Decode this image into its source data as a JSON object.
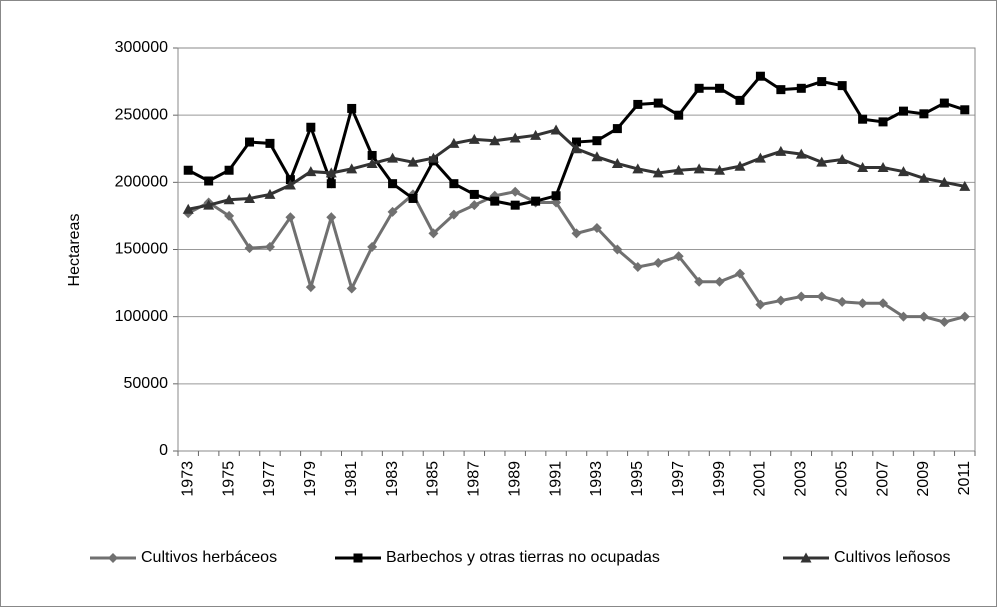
{
  "chart_data": {
    "type": "line",
    "y_label": "Hectareas",
    "categories": [
      "1973",
      null,
      "1975",
      null,
      "1977",
      null,
      "1979",
      null,
      "1981",
      null,
      "1983",
      null,
      "1985",
      null,
      "1987",
      null,
      "1989",
      null,
      "1991",
      null,
      "1993",
      null,
      "1995",
      null,
      "1997",
      null,
      "1999",
      null,
      "2001",
      null,
      "2003",
      null,
      "2005",
      null,
      "2007",
      null,
      "2009",
      null,
      "2011"
    ],
    "series": [
      {
        "name": "Cultivos herbáceos",
        "color": "#707070",
        "marker": "diamond",
        "values": [
          177000,
          185000,
          175000,
          151000,
          152000,
          174000,
          122000,
          174000,
          121000,
          152000,
          178000,
          191000,
          162000,
          176000,
          183000,
          190000,
          193000,
          185000,
          185000,
          162000,
          166000,
          150000,
          137000,
          140000,
          145000,
          126000,
          126000,
          132000,
          109000,
          112000,
          115000,
          115000,
          111000,
          110000,
          110000,
          100000,
          100000,
          96000,
          100000
        ]
      },
      {
        "name": "Barbechos y otras tierras no ocupadas",
        "color": "#000000",
        "marker": "square",
        "values": [
          209000,
          201000,
          209000,
          230000,
          229000,
          202000,
          241000,
          199000,
          255000,
          220000,
          199000,
          188000,
          216000,
          199000,
          191000,
          186000,
          183000,
          186000,
          190000,
          230000,
          231000,
          240000,
          258000,
          259000,
          250000,
          270000,
          270000,
          261000,
          279000,
          269000,
          270000,
          275000,
          272000,
          247000,
          245000,
          253000,
          251000,
          259000,
          254000
        ]
      },
      {
        "name": "Cultivos leñosos",
        "color": "#333333",
        "marker": "triangle",
        "values": [
          180000,
          183000,
          187000,
          188000,
          191000,
          198000,
          208000,
          207000,
          210000,
          214000,
          218000,
          215000,
          218000,
          229000,
          232000,
          231000,
          233000,
          235000,
          239000,
          225000,
          219000,
          214000,
          210000,
          207000,
          209000,
          210000,
          209000,
          212000,
          218000,
          223000,
          221000,
          215000,
          217000,
          211000,
          211000,
          208000,
          203000,
          200000,
          197000
        ]
      }
    ],
    "ylim": [
      0,
      300000
    ],
    "yticks": [
      0,
      50000,
      100000,
      150000,
      200000,
      250000,
      300000
    ],
    "grid": true,
    "legend": "bottom"
  }
}
